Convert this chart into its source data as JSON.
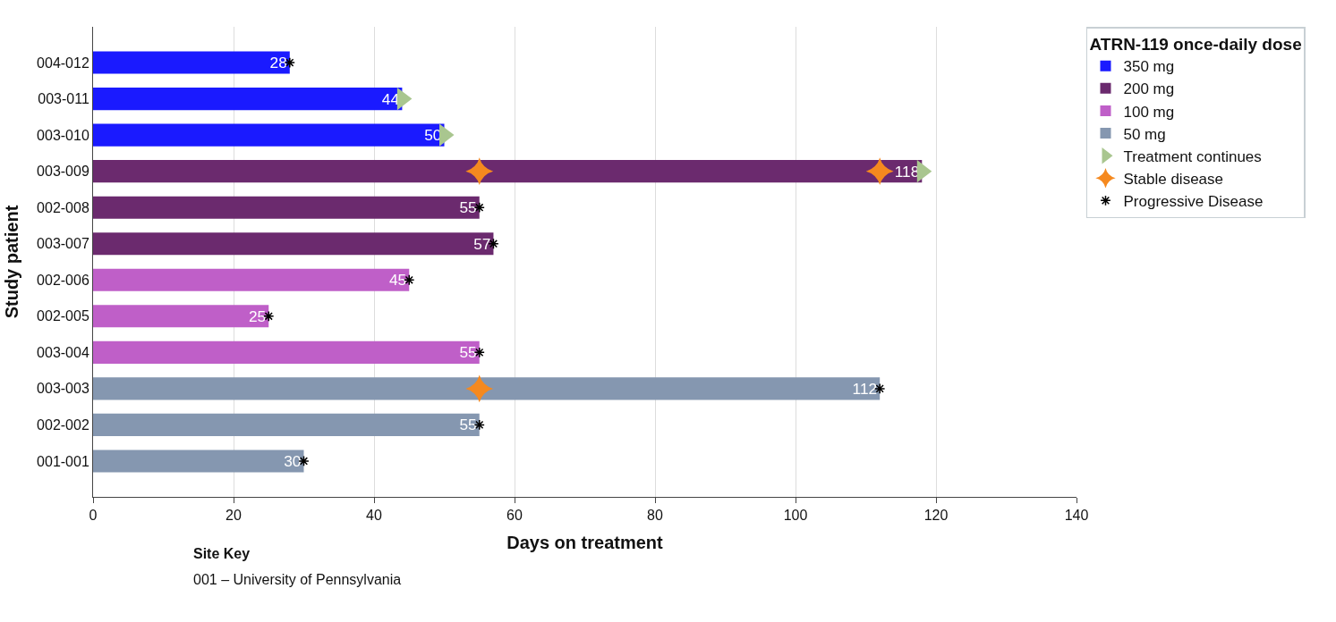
{
  "chart_data": {
    "type": "bar",
    "orientation": "horizontal",
    "xlabel": "Days on treatment",
    "ylabel": "Study patient",
    "legend_title": "ATRN-119 once-daily dose",
    "categories": [
      "004-012",
      "003-011",
      "003-010",
      "003-009",
      "002-008",
      "003-007",
      "002-006",
      "002-005",
      "003-004",
      "003-003",
      "002-002",
      "001-001"
    ],
    "series": [
      {
        "name": "350 mg",
        "color": "#1a1aff",
        "values": [
          28,
          44,
          50,
          null,
          null,
          null,
          null,
          null,
          null,
          null,
          null,
          null
        ],
        "value_labels": [
          "28",
          "44",
          "50",
          null,
          null,
          null,
          null,
          null,
          null,
          null,
          null,
          null
        ]
      },
      {
        "name": "200 mg",
        "color": "#6b2a6e",
        "values": [
          null,
          null,
          null,
          118,
          55,
          57,
          null,
          null,
          null,
          null,
          null,
          null
        ],
        "value_labels": [
          null,
          null,
          null,
          "118",
          "55",
          "57",
          null,
          null,
          null,
          null,
          null,
          null
        ]
      },
      {
        "name": "100 mg",
        "color": "#bf5fc8",
        "values": [
          null,
          null,
          null,
          null,
          null,
          null,
          45,
          25,
          55,
          null,
          null,
          null
        ],
        "value_labels": [
          null,
          null,
          null,
          null,
          null,
          null,
          "45",
          "25",
          "55",
          null,
          null,
          null
        ]
      },
      {
        "name": "50 mg",
        "color": "#8597b0",
        "values": [
          null,
          null,
          null,
          null,
          null,
          null,
          null,
          null,
          null,
          112,
          55,
          30
        ],
        "value_labels": [
          null,
          null,
          null,
          null,
          null,
          null,
          null,
          null,
          null,
          "112",
          "55",
          "30"
        ]
      },
      {
        "name": "Treatment continues",
        "type": "scatter",
        "marker": "triangle",
        "color": "#a9c68f",
        "values": [
          null,
          44,
          50,
          118,
          null,
          null,
          null,
          null,
          null,
          null,
          null,
          null
        ]
      },
      {
        "name": "Stable disease",
        "type": "scatter",
        "marker": "star",
        "color": "#f5891f",
        "values": [
          null,
          null,
          null,
          55,
          null,
          null,
          null,
          null,
          null,
          55,
          null,
          null
        ]
      },
      {
        "type": "scatter",
        "marker": "star",
        "color": "#f5891f",
        "values": [
          null,
          null,
          null,
          112,
          null,
          null,
          null,
          null,
          null,
          null,
          null,
          null
        ]
      },
      {
        "name": "Progressive Disease",
        "type": "scatter",
        "marker": "cross",
        "color": "#000000",
        "values": [
          28,
          null,
          null,
          null,
          55,
          57,
          45,
          25,
          55,
          112,
          55,
          30
        ]
      }
    ],
    "xlim": [
      0,
      140
    ],
    "xticks": [
      0,
      20,
      40,
      60,
      80,
      100,
      120,
      140
    ],
    "grid": "x",
    "legend": "top right",
    "annotations": [
      "Site Key",
      "001 – University of Pennsylvania"
    ]
  }
}
